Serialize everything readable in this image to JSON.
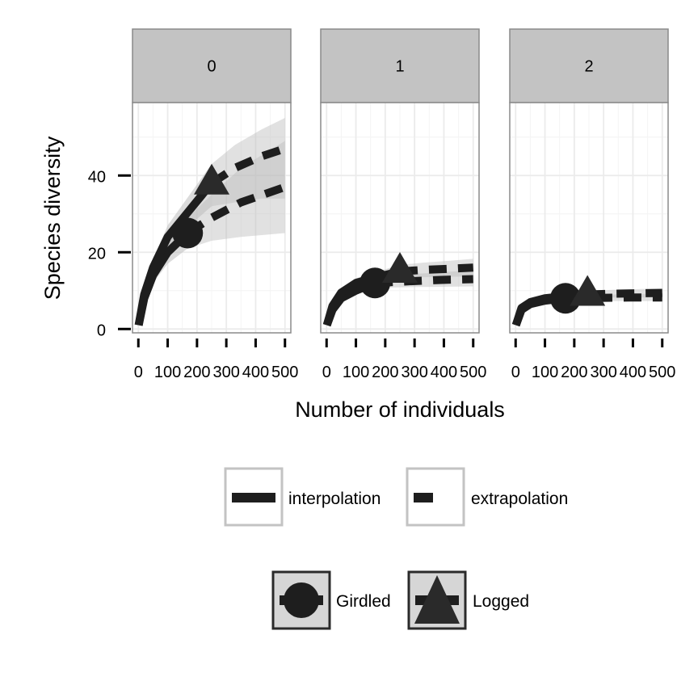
{
  "chart_data": {
    "type": "line",
    "facet_by": "panel",
    "xlabel": "Number of individuals",
    "ylabel": "Species diversity",
    "xlim": [
      -20,
      520
    ],
    "ylim": [
      -1,
      59
    ],
    "x_ticks": [
      0,
      100,
      200,
      300,
      400,
      500
    ],
    "y_ticks": [
      0,
      20,
      40
    ],
    "grid": true,
    "legend_position": "bottom",
    "line_legend": [
      {
        "key": "interpolation",
        "label": "interpolation",
        "style": "solid"
      },
      {
        "key": "extrapolation",
        "label": "extrapolation",
        "style": "dashed"
      }
    ],
    "shape_legend": [
      {
        "key": "Girdled",
        "label": "Girdled",
        "shape": "circle"
      },
      {
        "key": "Logged",
        "label": "Logged",
        "shape": "triangle"
      }
    ],
    "colors": {
      "panel_background": "#ffffff",
      "strip_fill": "#c3c3c3",
      "grid": "#ebebeb",
      "line": "#1e1e1e",
      "ribbon": "#cccccc",
      "legend_key_fill": "#d6d6d6"
    },
    "panels": [
      {
        "label": "0",
        "series": [
          {
            "site": "Girdled",
            "observed": {
              "x": 168,
              "y": 25
            },
            "interpolation": {
              "x": [
                1,
                20,
                50,
                100,
                168
              ],
              "y": [
                1,
                8,
                14,
                20,
                25
              ],
              "lower": [
                1,
                7,
                12,
                17,
                21
              ],
              "upper": [
                1,
                9,
                16,
                23,
                29
              ]
            },
            "extrapolation": {
              "x": [
                168,
                250,
                350,
                500
              ],
              "y": [
                25,
                29,
                33,
                37
              ],
              "lower": [
                21,
                23,
                24,
                25
              ],
              "upper": [
                29,
                35,
                42,
                49
              ]
            }
          },
          {
            "site": "Logged",
            "observed": {
              "x": 250,
              "y": 38
            },
            "interpolation": {
              "x": [
                1,
                20,
                50,
                100,
                175,
                250
              ],
              "y": [
                1,
                9,
                16,
                24,
                31,
                38
              ],
              "lower": [
                1,
                8,
                14,
                21,
                27,
                32
              ],
              "upper": [
                1,
                10,
                18,
                27,
                35,
                43
              ]
            },
            "extrapolation": {
              "x": [
                250,
                330,
                420,
                500
              ],
              "y": [
                38,
                42,
                45,
                47
              ],
              "lower": [
                32,
                33,
                34,
                34
              ],
              "upper": [
                43,
                48,
                52,
                55
              ]
            }
          }
        ]
      },
      {
        "label": "1",
        "series": [
          {
            "site": "Girdled",
            "observed": {
              "x": 165,
              "y": 12
            },
            "interpolation": {
              "x": [
                1,
                20,
                50,
                100,
                165
              ],
              "y": [
                1,
                5,
                8,
                10,
                12
              ],
              "lower": [
                1,
                4.5,
                7.2,
                9,
                10.7
              ],
              "upper": [
                1,
                5.5,
                8.8,
                11,
                13.3
              ]
            },
            "extrapolation": {
              "x": [
                165,
                270,
                390,
                500
              ],
              "y": [
                12,
                12.4,
                12.8,
                13
              ],
              "lower": [
                10.7,
                10.9,
                11,
                11.1
              ],
              "upper": [
                13.3,
                14.2,
                14.8,
                15.3
              ]
            }
          },
          {
            "site": "Logged",
            "observed": {
              "x": 250,
              "y": 15
            },
            "interpolation": {
              "x": [
                1,
                20,
                50,
                100,
                175,
                250
              ],
              "y": [
                1,
                6,
                9.5,
                12,
                13.6,
                15
              ],
              "lower": [
                1,
                5.5,
                8.7,
                10.8,
                12.2,
                13.3
              ],
              "upper": [
                1,
                6.5,
                10.3,
                13.2,
                15,
                16.7
              ]
            },
            "extrapolation": {
              "x": [
                250,
                330,
                420,
                500
              ],
              "y": [
                15,
                15.4,
                15.7,
                16
              ],
              "lower": [
                13.3,
                13.5,
                13.6,
                13.7
              ],
              "upper": [
                16.7,
                17.3,
                17.8,
                18.3
              ]
            }
          }
        ]
      },
      {
        "label": "2",
        "series": [
          {
            "site": "Girdled",
            "observed": {
              "x": 170,
              "y": 8
            },
            "interpolation": {
              "x": [
                1,
                20,
                50,
                100,
                170
              ],
              "y": [
                1,
                5,
                6.5,
                7.4,
                8
              ],
              "lower": [
                1,
                4.6,
                6,
                6.8,
                7.3
              ],
              "upper": [
                1,
                5.4,
                7,
                8,
                8.7
              ]
            },
            "extrapolation": {
              "x": [
                170,
                280,
                390,
                500
              ],
              "y": [
                8,
                8.1,
                8.2,
                8.2
              ],
              "lower": [
                7.3,
                7.3,
                7.3,
                7.3
              ],
              "upper": [
                8.7,
                8.9,
                9.1,
                9.2
              ]
            }
          },
          {
            "site": "Logged",
            "observed": {
              "x": 245,
              "y": 9
            },
            "interpolation": {
              "x": [
                1,
                20,
                50,
                100,
                175,
                245
              ],
              "y": [
                1,
                5.5,
                7,
                8,
                8.6,
                9
              ],
              "lower": [
                1,
                5,
                6.4,
                7.3,
                7.8,
                8.1
              ],
              "upper": [
                1,
                6,
                7.6,
                8.7,
                9.4,
                9.9
              ]
            },
            "extrapolation": {
              "x": [
                245,
                330,
                420,
                500
              ],
              "y": [
                9,
                9.2,
                9.3,
                9.4
              ],
              "lower": [
                8.1,
                8.2,
                8.2,
                8.2
              ],
              "upper": [
                9.9,
                10.2,
                10.4,
                10.6
              ]
            }
          }
        ]
      }
    ]
  }
}
